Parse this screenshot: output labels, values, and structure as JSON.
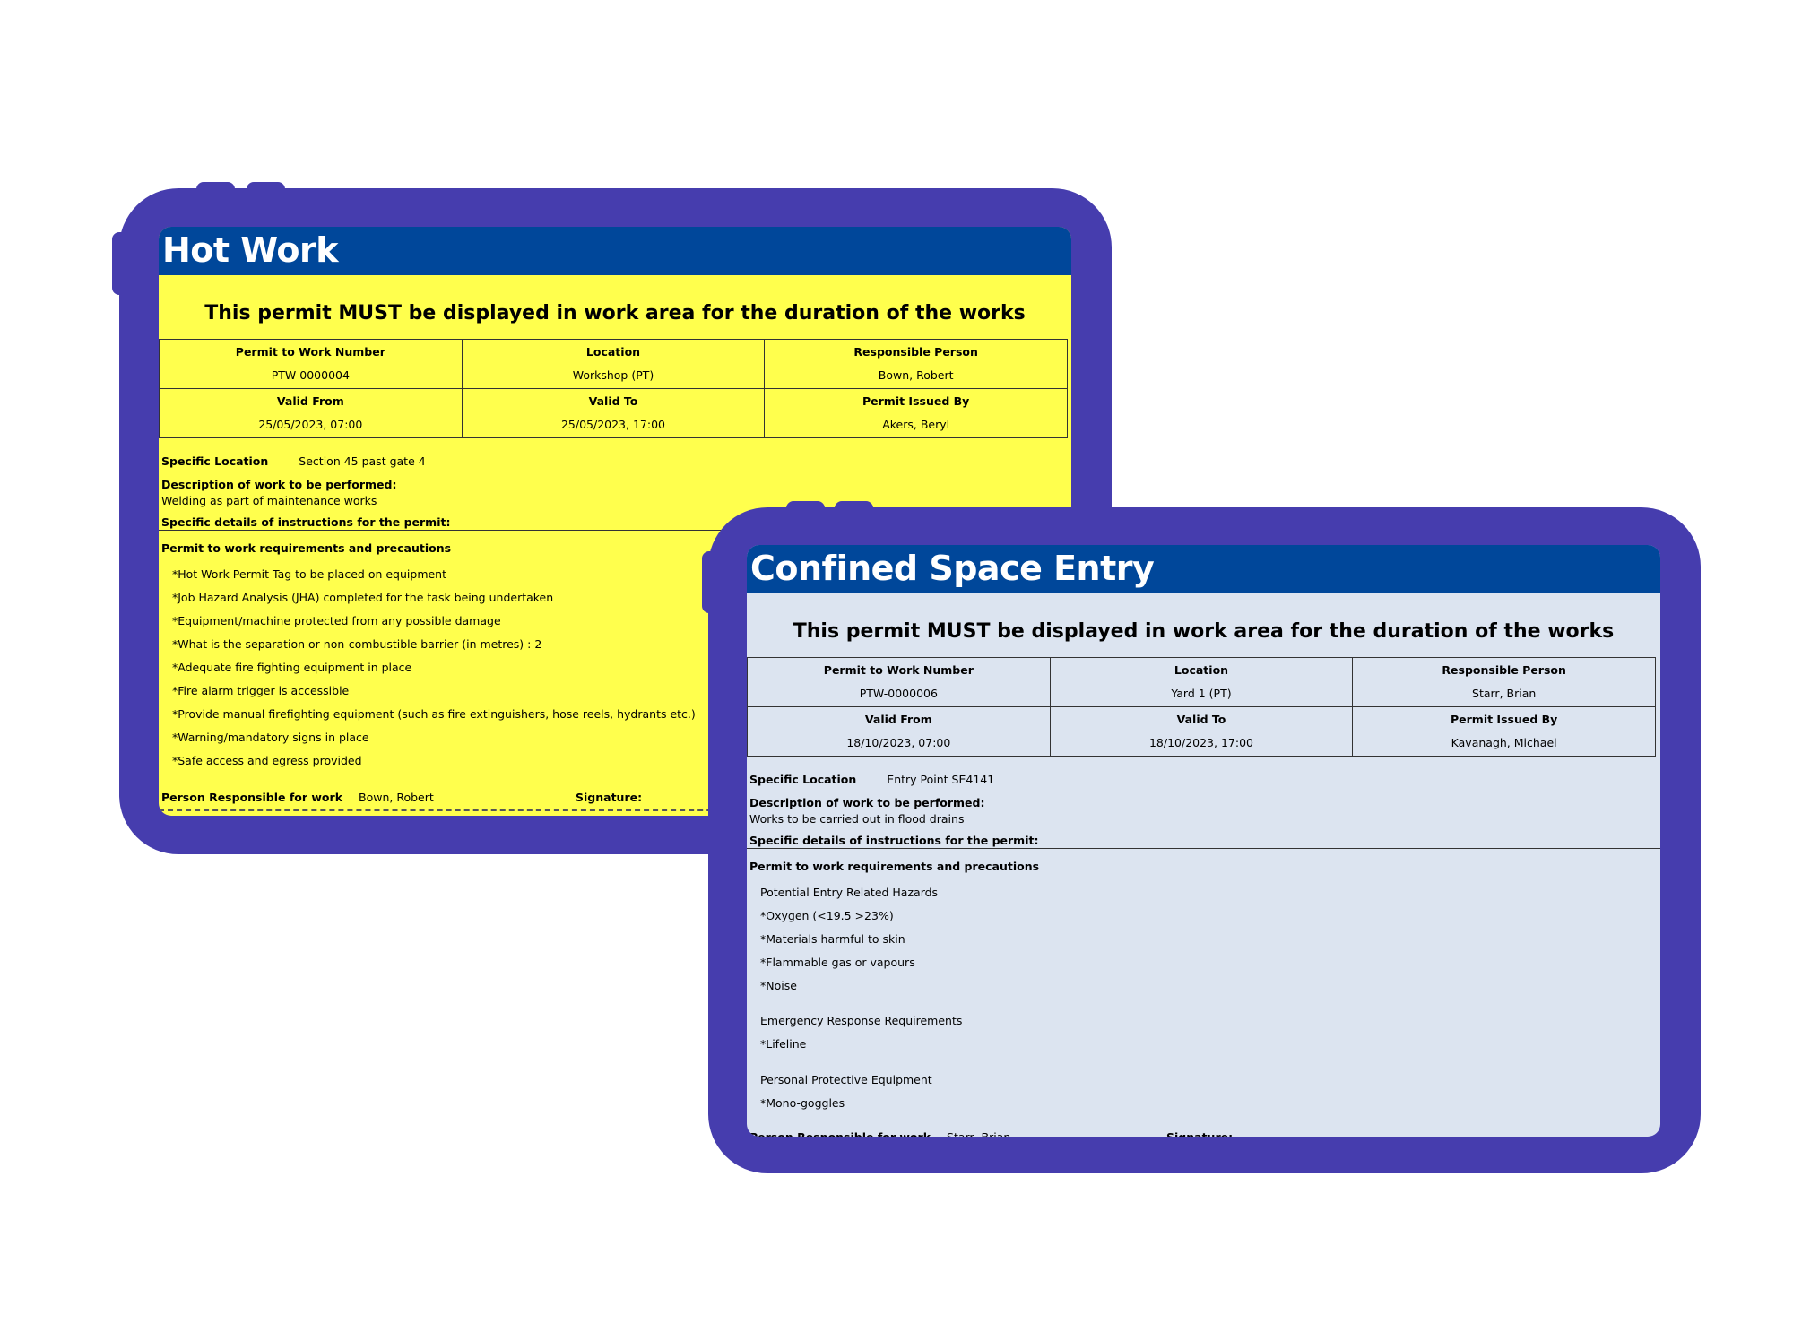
{
  "colors": {
    "frame": "#463DAE",
    "header": "#00479A",
    "hot_work_bg": "#FFFF4D",
    "confined_bg": "#DCE4F0"
  },
  "permits": [
    {
      "title": "Hot Work",
      "headline": "This permit MUST be displayed in work area for the duration of the works",
      "grid": [
        {
          "label": "Permit to Work Number",
          "value": "PTW-0000004"
        },
        {
          "label": "Location",
          "value": "Workshop (PT)"
        },
        {
          "label": "Responsible Person",
          "value": "Bown, Robert"
        },
        {
          "label": "Valid From",
          "value": "25/05/2023,  07:00"
        },
        {
          "label": "Valid To",
          "value": "25/05/2023,  17:00"
        },
        {
          "label": "Permit Issued By",
          "value": "Akers, Beryl"
        }
      ],
      "specific_location_label": "Specific Location",
      "specific_location": "Section 45 past gate 4",
      "description_label": "Description of work to be performed:",
      "description": "Welding as part of maintenance works",
      "instructions_label": "Specific details of instructions for the permit:",
      "requirements_label": "Permit to work requirements and precautions",
      "requirements": [
        "*Hot Work Permit Tag to be placed on equipment",
        "*Job Hazard Analysis (JHA) completed for the task being undertaken",
        "*Equipment/machine protected from any possible damage",
        "*What is the separation or non-combustible barrier (in metres) : 2",
        "*Adequate fire fighting equipment in place",
        "*Fire alarm trigger is accessible",
        "*Provide manual firefighting equipment (such as fire extinguishers, hose reels, hydrants etc.)",
        "*Warning/mandatory signs in place",
        "*Safe access and egress provided"
      ],
      "person_label": "Person Responsible for work",
      "person": "Bown, Robert",
      "signature_label": "Signature:"
    },
    {
      "title": "Confined Space Entry",
      "headline": "This permit MUST be displayed in work area for the duration of the works",
      "grid": [
        {
          "label": "Permit to Work Number",
          "value": "PTW-0000006"
        },
        {
          "label": "Location",
          "value": "Yard 1 (PT)"
        },
        {
          "label": "Responsible Person",
          "value": "Starr, Brian"
        },
        {
          "label": "Valid From",
          "value": "18/10/2023,  07:00"
        },
        {
          "label": "Valid To",
          "value": "18/10/2023,  17:00"
        },
        {
          "label": "Permit Issued By",
          "value": "Kavanagh, Michael"
        }
      ],
      "specific_location_label": "Specific Location",
      "specific_location": "Entry Point SE4141",
      "description_label": "Description of work to be performed:",
      "description": "Works to be carried out in flood drains",
      "instructions_label": "Specific details of instructions for the permit:",
      "requirements_label": "Permit to work requirements and precautions",
      "requirements": [
        "Potential Entry Related Hazards",
        "*Oxygen (<19.5 >23%)",
        "*Materials harmful to skin",
        "*Flammable gas or vapours",
        "*Noise",
        "Emergency Response Requirements",
        "*Lifeline",
        "Personal Protective Equipment",
        "*Mono-goggles"
      ],
      "person_label": "Person Responsible for work",
      "person": "Starr, Brian",
      "signature_label": "Signature:"
    }
  ]
}
